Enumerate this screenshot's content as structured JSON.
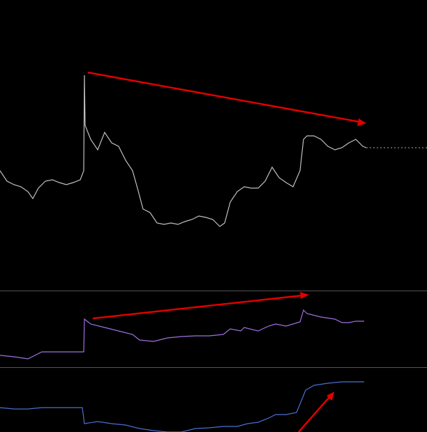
{
  "chart_data": [
    {
      "type": "line",
      "color": "#c0c0c0",
      "xlim": [
        0,
        612
      ],
      "ylim": [
        0,
        417
      ],
      "x": [
        0,
        10,
        20,
        30,
        40,
        47,
        55,
        65,
        75,
        85,
        95,
        105,
        115,
        120,
        121,
        122,
        130,
        140,
        150,
        160,
        170,
        180,
        190,
        197,
        205,
        215,
        225,
        235,
        245,
        255,
        265,
        275,
        285,
        295,
        305,
        315,
        322,
        330,
        340,
        350,
        360,
        370,
        380,
        390,
        400,
        410,
        420,
        430,
        435,
        440,
        450,
        460,
        470,
        480,
        490,
        500,
        510,
        520,
        525
      ],
      "values": [
        172,
        157,
        152,
        149,
        142,
        132,
        147,
        157,
        159,
        155,
        152,
        155,
        159,
        172,
        309,
        237,
        217,
        202,
        227,
        212,
        207,
        187,
        172,
        147,
        117,
        112,
        97,
        95,
        97,
        95,
        99,
        102,
        107,
        105,
        102,
        92,
        97,
        127,
        142,
        149,
        147,
        147,
        157,
        177,
        162,
        155,
        149,
        172,
        217,
        222,
        222,
        217,
        207,
        202,
        205,
        212,
        217,
        207,
        205
      ]
    },
    {
      "type": "line",
      "color": "#a070e0",
      "xlim": [
        0,
        612
      ],
      "ylim": [
        0,
        109
      ],
      "x": [
        0,
        20,
        40,
        60,
        80,
        100,
        120,
        121,
        130,
        150,
        170,
        190,
        200,
        220,
        240,
        260,
        280,
        300,
        320,
        330,
        345,
        350,
        370,
        385,
        395,
        410,
        430,
        435,
        440,
        460,
        480,
        490,
        500,
        510,
        522
      ],
      "values": [
        17,
        15,
        12,
        22,
        22,
        22,
        22,
        69,
        62,
        57,
        52,
        47,
        39,
        37,
        42,
        44,
        45,
        45,
        47,
        55,
        52,
        57,
        52,
        59,
        62,
        59,
        65,
        82,
        77,
        72,
        69,
        64,
        64,
        66,
        66
      ]
    },
    {
      "type": "line",
      "color": "#4a6fd0",
      "xlim": [
        0,
        612
      ],
      "ylim": [
        0,
        92
      ],
      "x": [
        0,
        20,
        40,
        60,
        80,
        100,
        118,
        121,
        140,
        160,
        180,
        200,
        220,
        240,
        260,
        280,
        300,
        320,
        340,
        355,
        370,
        385,
        395,
        410,
        425,
        432,
        438,
        450,
        470,
        490,
        510,
        522
      ],
      "values": [
        35,
        33,
        33,
        35,
        35,
        35,
        35,
        12,
        15,
        12,
        10,
        5,
        2,
        0,
        0,
        5,
        6,
        8,
        8,
        12,
        14,
        20,
        25,
        25,
        28,
        45,
        60,
        67,
        70,
        72,
        72,
        72
      ]
    }
  ]
}
